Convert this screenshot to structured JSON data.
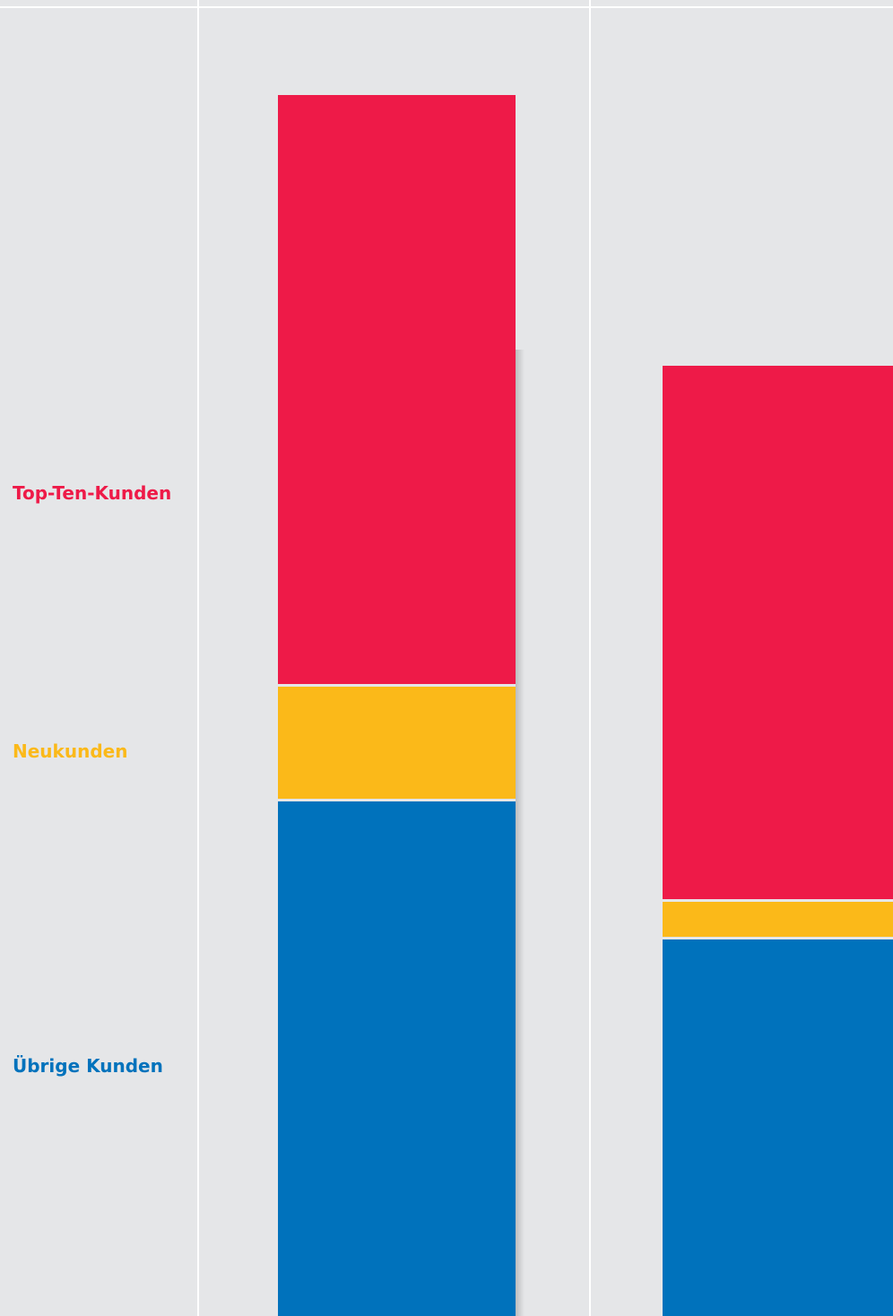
{
  "colors": {
    "background": "#e5e6e8",
    "gridline": "#ffffff",
    "top_ten": "#ee1a48",
    "neu": "#fbb919",
    "uebrige": "#0072bc"
  },
  "chart_data": {
    "type": "bar",
    "stacked": true,
    "categories": [
      "",
      ""
    ],
    "series": [
      {
        "name": "Übrige Kunden",
        "color": "#0072bc",
        "values": [
          574,
          420
        ]
      },
      {
        "name": "Neukunden",
        "color": "#fbb919",
        "values": [
          128,
          42
        ]
      },
      {
        "name": "Top-Ten-Kunden",
        "color": "#ee1a48",
        "values": [
          660,
          598
        ]
      }
    ],
    "title": "",
    "xlabel": "",
    "ylabel": "",
    "legend": "left",
    "grid": true
  },
  "legend": {
    "top_ten": "Top-Ten-Kunden",
    "neu": "Neukunden",
    "uebrige": "Übrige Kunden"
  }
}
